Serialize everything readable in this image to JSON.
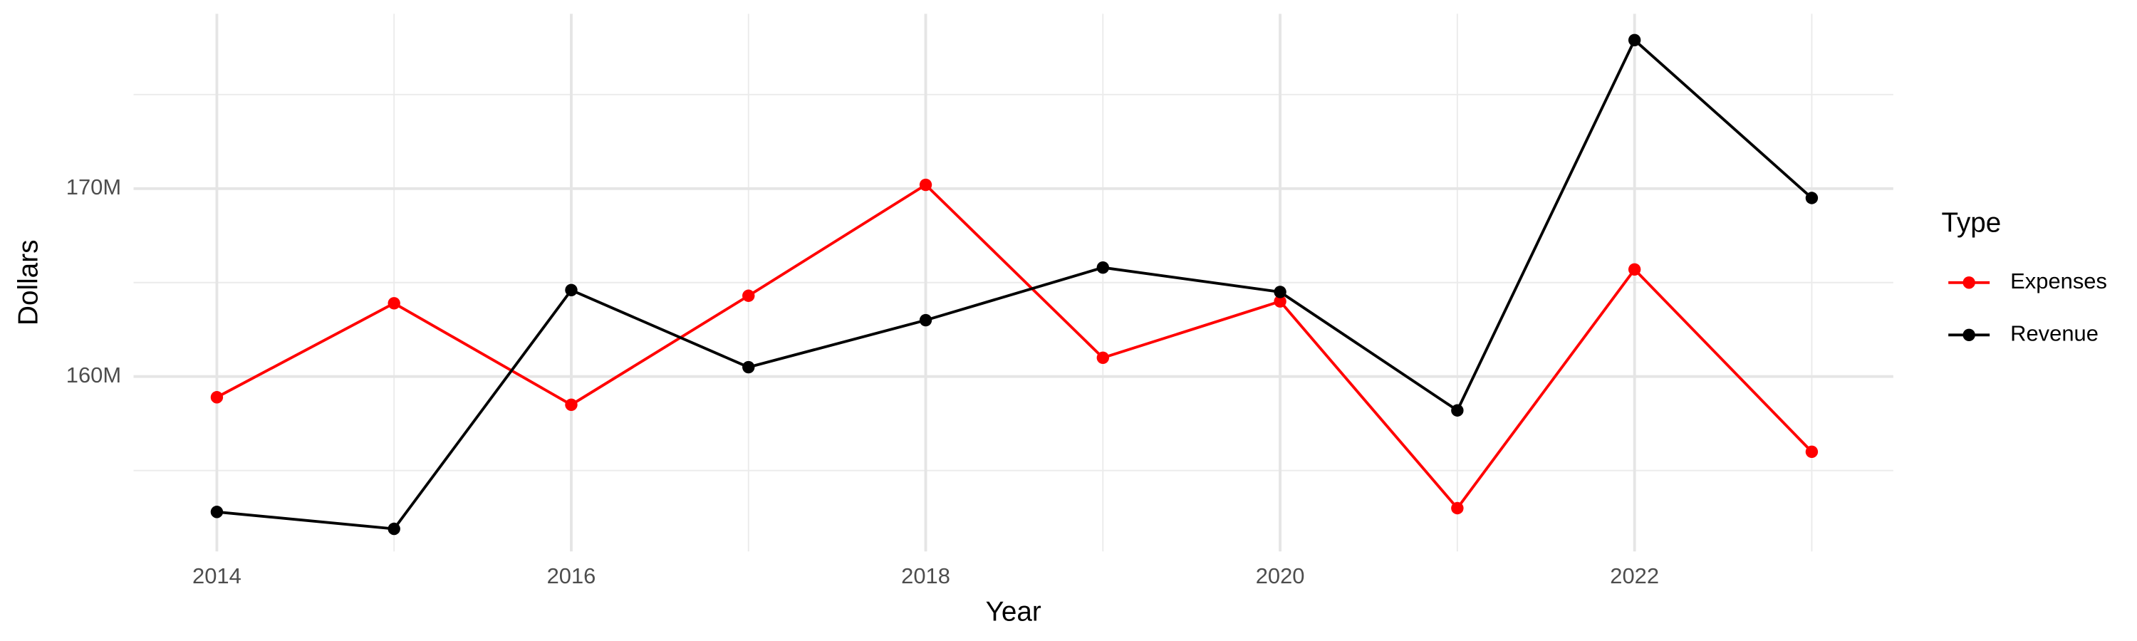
{
  "chart_data": {
    "type": "line",
    "x_label": "Year",
    "y_label": "Dollars",
    "legend_title": "Type",
    "x": [
      2014,
      2015,
      2016,
      2017,
      2018,
      2019,
      2020,
      2021,
      2022,
      2023
    ],
    "series": [
      {
        "name": "Expenses",
        "color": "#ff0000",
        "values": [
          158900000,
          163900000,
          158500000,
          164300000,
          170200000,
          161000000,
          164000000,
          153000000,
          165700000,
          156000000
        ]
      },
      {
        "name": "Revenue",
        "color": "#000000",
        "values": [
          152800000,
          151900000,
          164600000,
          160500000,
          163000000,
          165800000,
          164500000,
          158200000,
          177900000,
          169500000
        ]
      }
    ],
    "xlim": [
      2013.53,
      2023.46
    ],
    "xticks": [
      2014,
      2016,
      2018,
      2020,
      2022
    ],
    "ylim": [
      150700000,
      179300000
    ],
    "yticks": [
      {
        "value": 160000000,
        "label": "160M"
      },
      {
        "value": 170000000,
        "label": "170M"
      }
    ],
    "grid": true,
    "legend": "right"
  }
}
